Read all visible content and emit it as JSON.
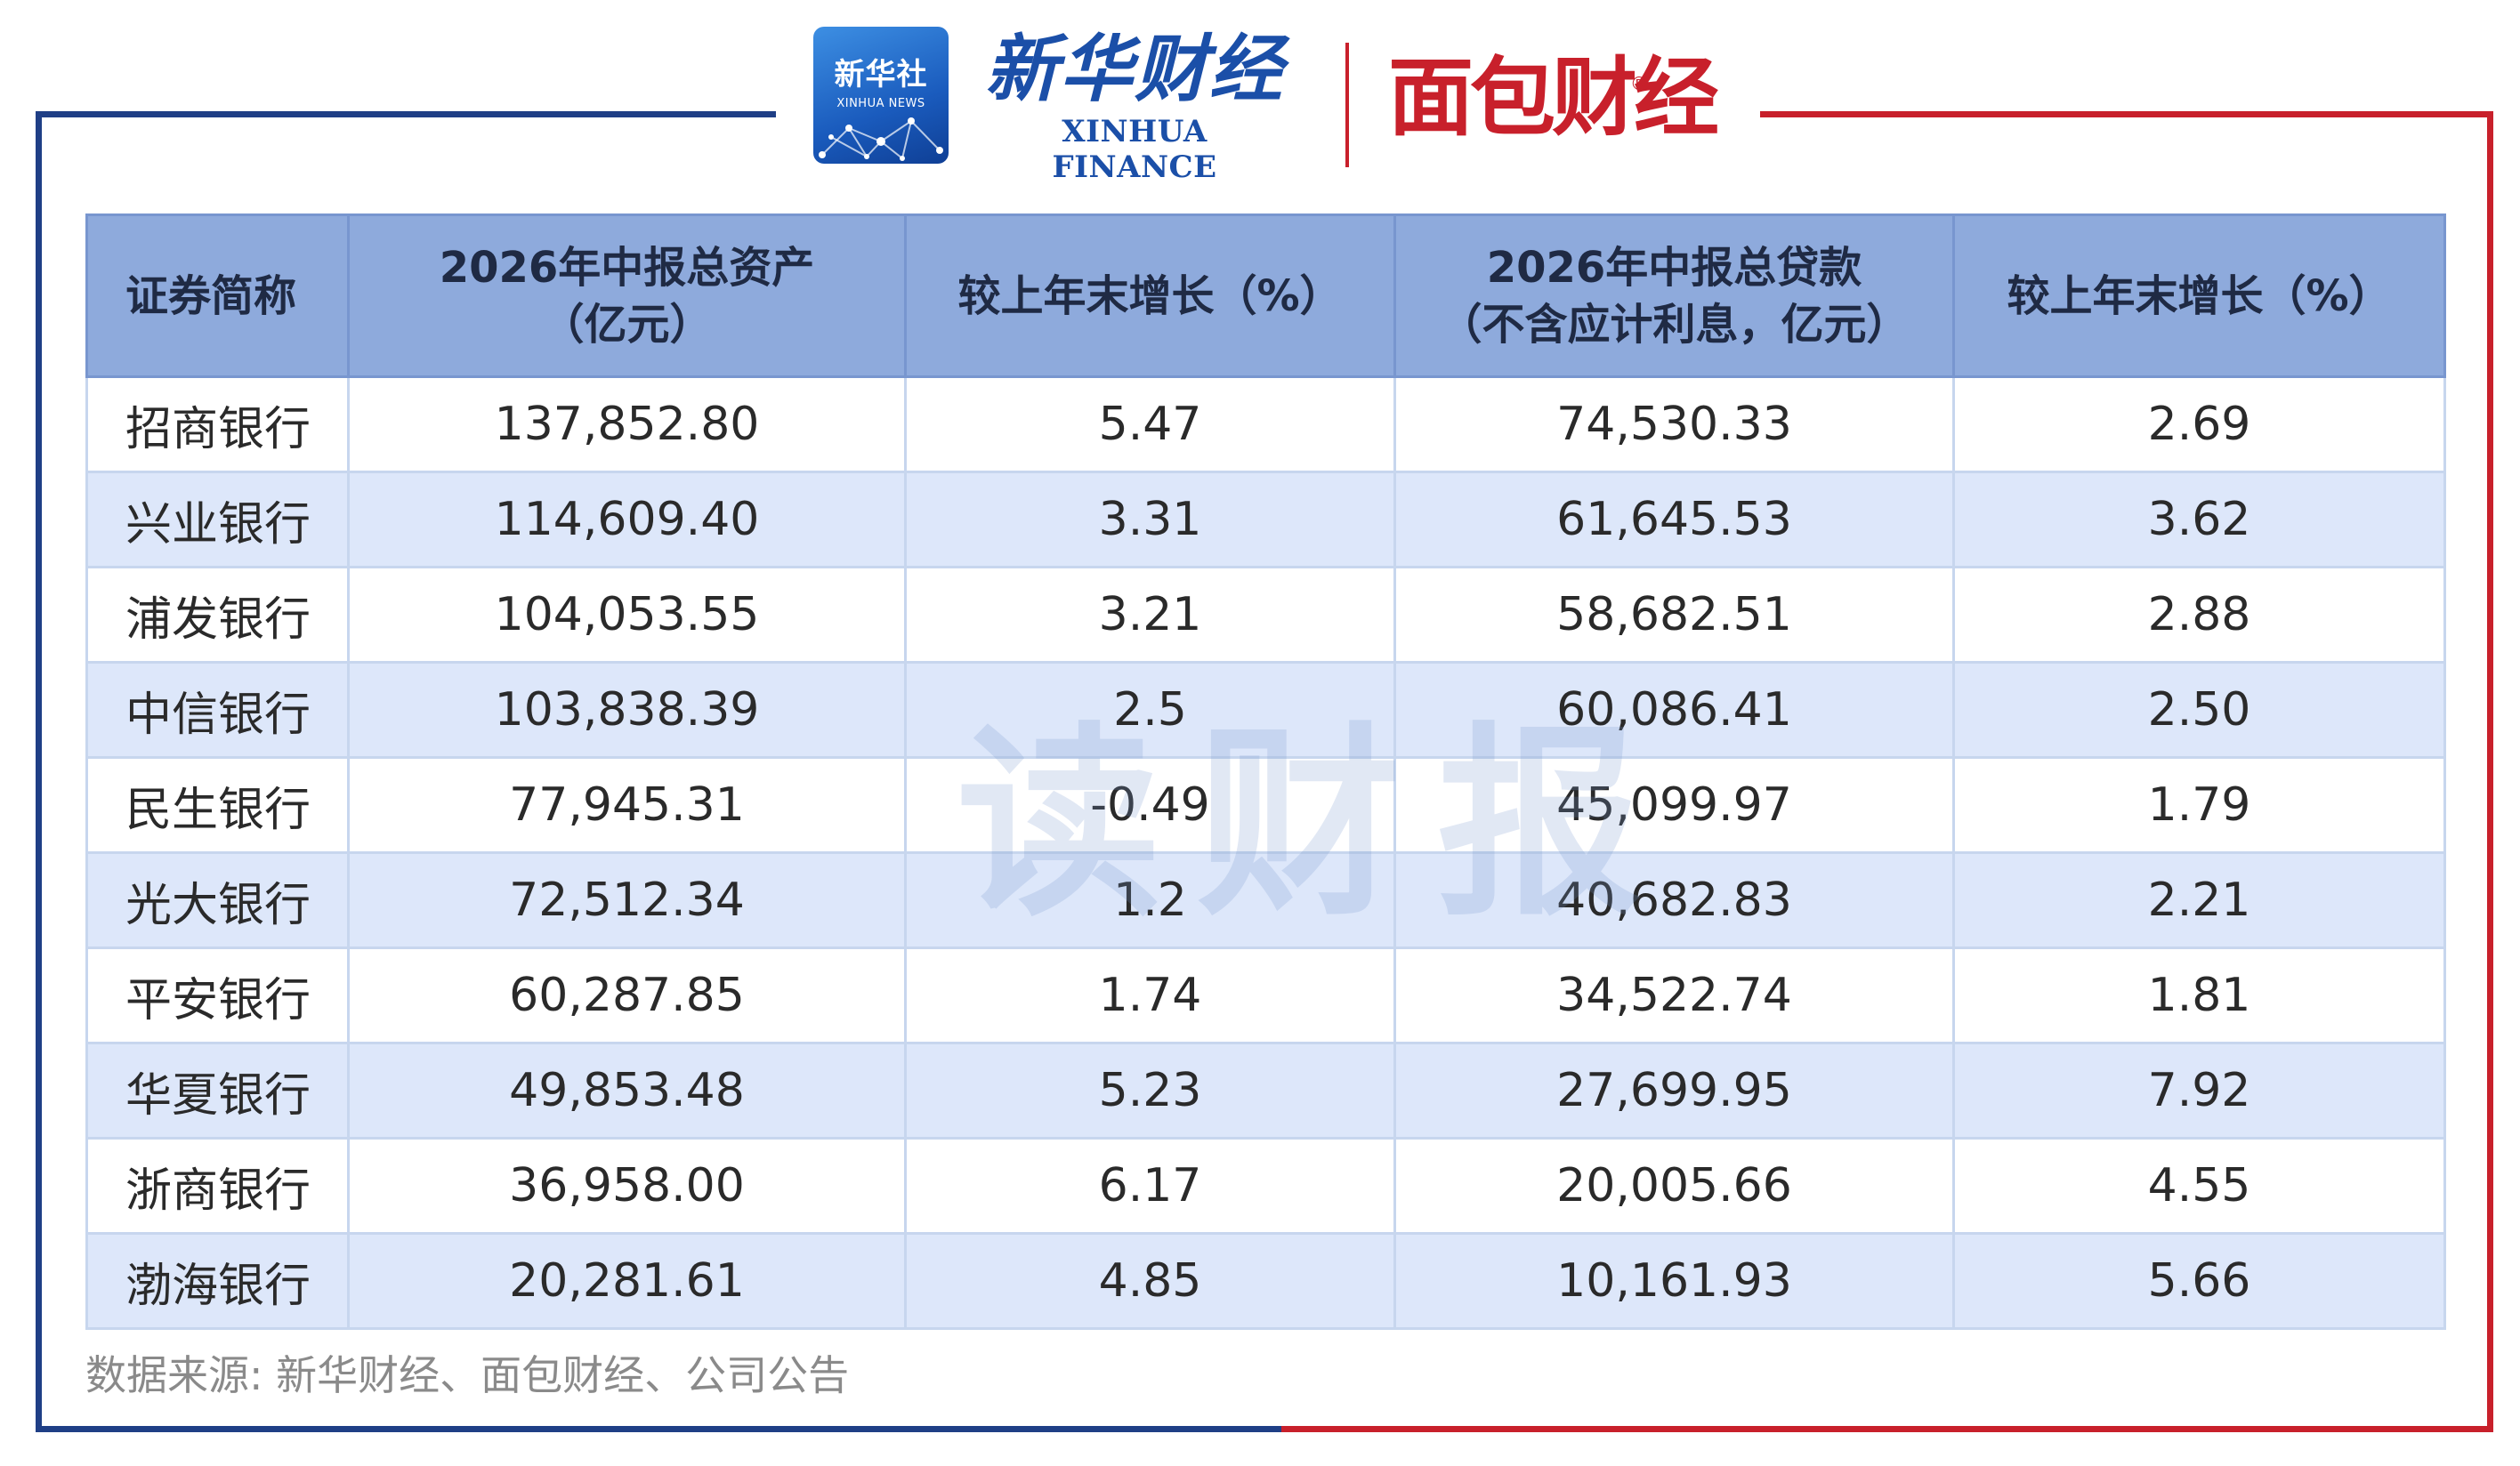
{
  "header": {
    "xinhua_logo_cn": "新华社",
    "xinhua_logo_en": "XINHUA NEWS",
    "xinhua_finance_cn": "新华财经",
    "xinhua_finance_en": "XINHUA FINANCE",
    "mianbao_logo": "面包财经",
    "registered_mark": "®"
  },
  "table": {
    "columns": [
      "证券简称",
      [
        "2026年中报总资产",
        "（亿元）"
      ],
      "较上年末增长（%）",
      [
        "2026年中报总贷款",
        "（不含应计利息，亿元）"
      ],
      "较上年末增长（%）"
    ],
    "rows": [
      [
        "招商银行",
        "137,852.80",
        "5.47",
        "74,530.33",
        "2.69"
      ],
      [
        "兴业银行",
        "114,609.40",
        "3.31",
        "61,645.53",
        "3.62"
      ],
      [
        "浦发银行",
        "104,053.55",
        "3.21",
        "58,682.51",
        "2.88"
      ],
      [
        "中信银行",
        "103,838.39",
        "2.5",
        "60,086.41",
        "2.50"
      ],
      [
        "民生银行",
        "77,945.31",
        "-0.49",
        "45,099.97",
        "1.79"
      ],
      [
        "光大银行",
        "72,512.34",
        "1.2",
        "40,682.83",
        "2.21"
      ],
      [
        "平安银行",
        "60,287.85",
        "1.74",
        "34,522.74",
        "1.81"
      ],
      [
        "华夏银行",
        "49,853.48",
        "5.23",
        "27,699.95",
        "7.92"
      ],
      [
        "浙商银行",
        "36,958.00",
        "6.17",
        "20,005.66",
        "4.55"
      ],
      [
        "渤海银行",
        "20,281.61",
        "4.85",
        "10,161.93",
        "5.66"
      ]
    ]
  },
  "watermark": "读财报",
  "source_note": "数据来源: 新华财经、面包财经、公司公告",
  "colors": {
    "frame_left": "#1f3f86",
    "frame_right": "#c8202b",
    "header_bg": "#8eaadc",
    "row_alt_bg": "#dde7fa"
  }
}
